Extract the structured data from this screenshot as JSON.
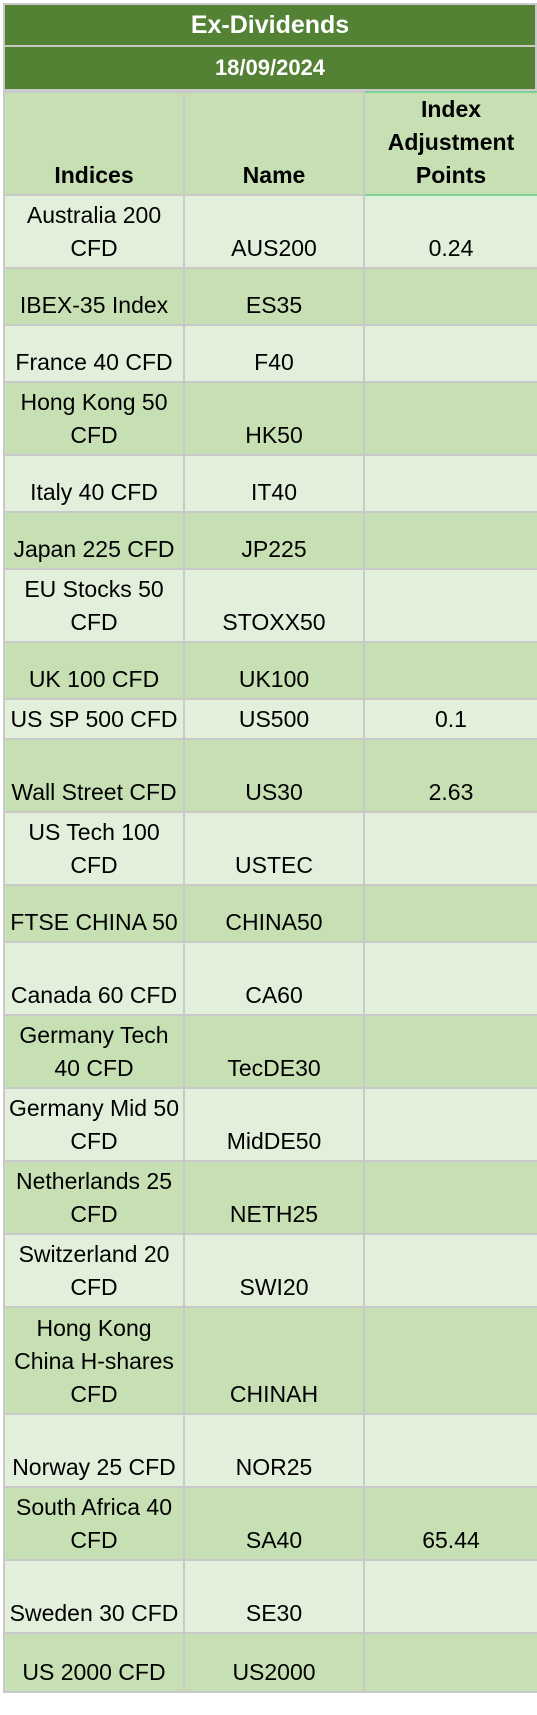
{
  "title": "Ex-Dividends",
  "date": "18/09/2024",
  "columns": [
    "Indices",
    "Name",
    "Index Adjustment Points"
  ],
  "rows": [
    {
      "index": "Australia 200 CFD",
      "name": "AUS200",
      "points": "0.24"
    },
    {
      "index": "IBEX-35 Index",
      "name": "ES35",
      "points": ""
    },
    {
      "index": "France 40 CFD",
      "name": "F40",
      "points": ""
    },
    {
      "index": "Hong Kong 50 CFD",
      "name": "HK50",
      "points": ""
    },
    {
      "index": "Italy 40 CFD",
      "name": "IT40",
      "points": ""
    },
    {
      "index": "Japan 225 CFD",
      "name": "JP225",
      "points": ""
    },
    {
      "index": "EU Stocks 50 CFD",
      "name": "STOXX50",
      "points": ""
    },
    {
      "index": "UK 100 CFD",
      "name": "UK100",
      "points": ""
    },
    {
      "index": "US SP 500 CFD",
      "name": "US500",
      "points": "0.1"
    },
    {
      "index": "Wall Street CFD",
      "name": "US30",
      "points": "2.63"
    },
    {
      "index": "US Tech 100 CFD",
      "name": "USTEC",
      "points": ""
    },
    {
      "index": "FTSE CHINA 50",
      "name": "CHINA50",
      "points": ""
    },
    {
      "index": "Canada 60 CFD",
      "name": "CA60",
      "points": ""
    },
    {
      "index": "Germany Tech 40 CFD",
      "name": "TecDE30",
      "points": ""
    },
    {
      "index": "Germany Mid 50 CFD",
      "name": "MidDE50",
      "points": ""
    },
    {
      "index": "Netherlands 25 CFD",
      "name": "NETH25",
      "points": ""
    },
    {
      "index": "Switzerland 20 CFD",
      "name": "SWI20",
      "points": ""
    },
    {
      "index": "Hong Kong China H-shares CFD",
      "name": "CHINAH",
      "points": ""
    },
    {
      "index": "Norway 25 CFD",
      "name": "NOR25",
      "points": ""
    },
    {
      "index": "South Africa 40 CFD",
      "name": "SA40",
      "points": "65.44"
    },
    {
      "index": "Sweden 30 CFD",
      "name": "SE30",
      "points": ""
    },
    {
      "index": "US 2000 CFD",
      "name": "US2000",
      "points": ""
    }
  ]
}
